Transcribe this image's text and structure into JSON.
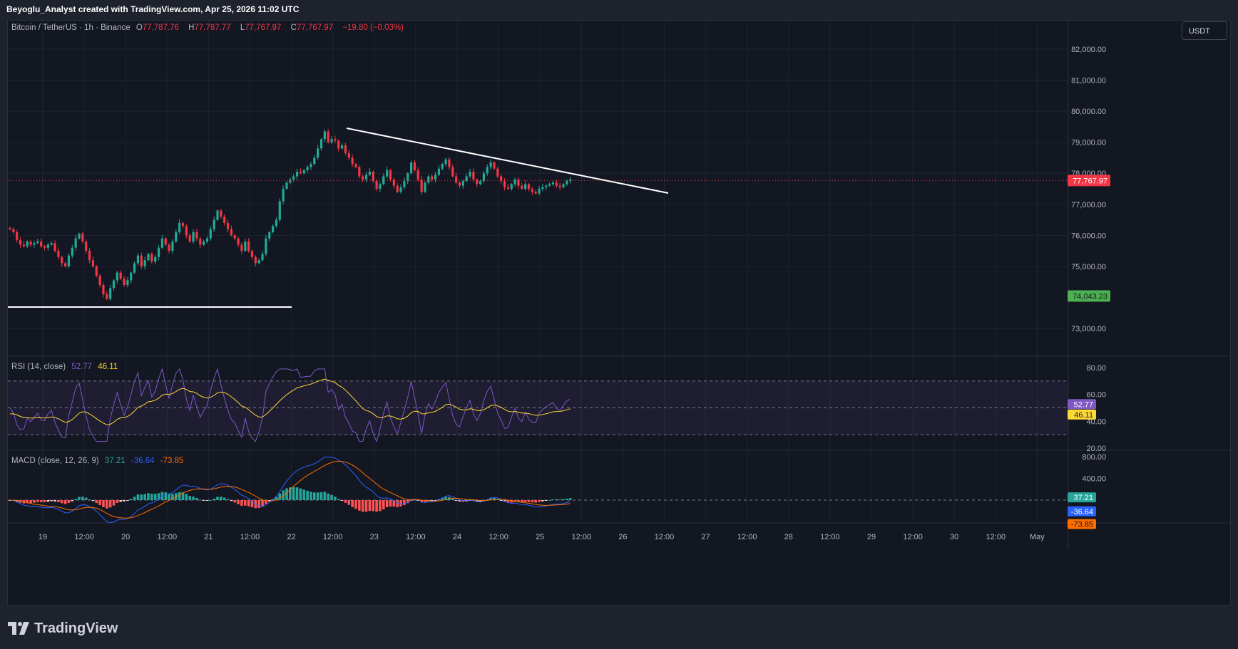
{
  "header": {
    "attribution": "Beyoglu_Analyst created with TradingView.com, Apr 25, 2026 11:02 UTC"
  },
  "symbol": {
    "title": "Bitcoin / TetherUS · 1h · Binance",
    "open_label": "O",
    "open": "77,787.76",
    "high_label": "H",
    "high": "77,787.77",
    "low_label": "L",
    "low": "77,767.97",
    "close_label": "C",
    "close": "77,767.97",
    "change": "−19.80 (−0.03%)"
  },
  "currency_button": "USDT",
  "colors": {
    "up": "#22ab94",
    "down": "#f23645",
    "rsi_line": "#7e57c2",
    "rsi_ma": "#fdd835",
    "macd_line": "#2962ff",
    "signal_line": "#ff6d00",
    "background": "#131722"
  },
  "price_axis": [
    "82,000.00",
    "81,000.00",
    "80,000.00",
    "79,000.00",
    "78,000.00",
    "77,000.00",
    "76,000.00",
    "75,000.00",
    "73,000.00"
  ],
  "price_badges": {
    "last": "77,767.97",
    "support": "74,043.23"
  },
  "rsi": {
    "label": "RSI (14, close)",
    "value": "52.77",
    "ma_value": "46.11",
    "axis": [
      "80.00",
      "60.00",
      "40.00",
      "20.00"
    ]
  },
  "macd": {
    "label": "MACD (close, 12, 26, 9)",
    "hist": "37.21",
    "macd": "-36.64",
    "signal": "-73.85",
    "axis": [
      "800.00",
      "400.00"
    ],
    "badges": [
      "37.21",
      "-36.64",
      "-73.85"
    ]
  },
  "time_axis": [
    "19",
    "12:00",
    "20",
    "12:00",
    "21",
    "12:00",
    "22",
    "12:00",
    "23",
    "12:00",
    "24",
    "12:00",
    "25",
    "12:00",
    "26",
    "12:00",
    "27",
    "12:00",
    "28",
    "12:00",
    "29",
    "12:00",
    "30",
    "12:00",
    "May"
  ],
  "footer": {
    "brand": "TradingView"
  },
  "chart_data": {
    "type": "candlestick",
    "interval": "1h",
    "y_range": [
      72500,
      82500
    ],
    "note": "hourly close path sampled from the screenshot",
    "closes": [
      76200,
      76100,
      75850,
      75700,
      75650,
      75800,
      75700,
      75750,
      75800,
      75650,
      75600,
      75700,
      75750,
      75500,
      75300,
      75100,
      75000,
      75350,
      75600,
      75900,
      76050,
      75800,
      75500,
      75200,
      75000,
      74700,
      74400,
      74100,
      73950,
      74300,
      74550,
      74800,
      74600,
      74400,
      74550,
      74800,
      75100,
      75350,
      75000,
      75200,
      75400,
      75150,
      75300,
      75600,
      75900,
      75700,
      75500,
      75800,
      76100,
      76400,
      76300,
      76000,
      75800,
      76100,
      75900,
      75700,
      75800,
      75900,
      76200,
      76500,
      76800,
      76600,
      76400,
      76200,
      76000,
      75900,
      75700,
      75500,
      75800,
      75500,
      75300,
      75100,
      75200,
      75400,
      75900,
      76100,
      76300,
      76500,
      77100,
      77500,
      77700,
      77800,
      77900,
      78050,
      78000,
      78100,
      78200,
      78300,
      78500,
      78800,
      79100,
      79350,
      79000,
      79100,
      79050,
      78800,
      78900,
      78650,
      78500,
      78300,
      78200,
      77900,
      77800,
      77950,
      78050,
      77750,
      77500,
      77650,
      77900,
      78100,
      77800,
      77600,
      77400,
      77550,
      77750,
      78000,
      78350,
      78100,
      77800,
      77400,
      77700,
      77900,
      77800,
      77950,
      78150,
      78300,
      78450,
      78200,
      77900,
      77700,
      77600,
      77750,
      77900,
      78050,
      77800,
      77650,
      77750,
      78000,
      78200,
      78350,
      78150,
      77900,
      77750,
      77550,
      77500,
      77650,
      77800,
      77600,
      77500,
      77650,
      77500,
      77400,
      77350,
      77500,
      77550,
      77600,
      77650,
      77700,
      77600,
      77550,
      77650,
      77750,
      77800
    ]
  },
  "annotations": {
    "trendline_desc": "descending resistance",
    "support_line_desc": "horizontal support"
  }
}
